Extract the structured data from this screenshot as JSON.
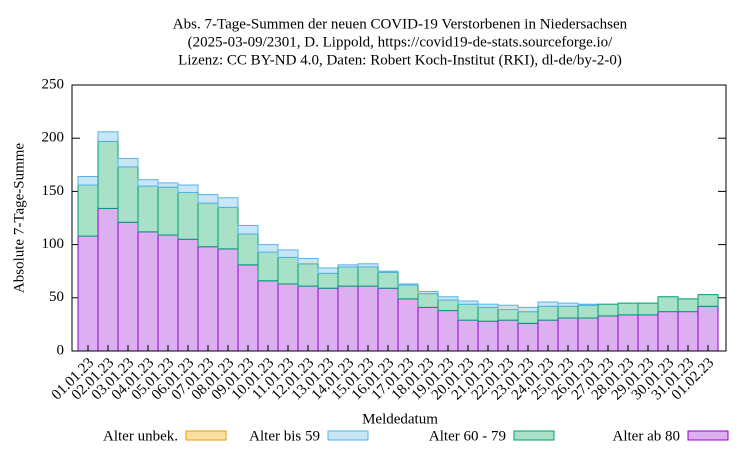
{
  "chart_data": {
    "type": "stacked_bar",
    "title": [
      "Abs. 7-Tage-Summen der neuen COVID-19 Verstorbenen in Niedersachsen",
      "(2025-03-09/2301, D. Lippold, https://covid19-de-stats.sourceforge.io/",
      "Lizenz: CC BY-ND 4.0, Daten: Robert Koch-Institut (RKI), dl-de/by-2-0)"
    ],
    "x_label": "Meldedatum",
    "y_label": "Absolute 7-Tage-Summe",
    "categories": [
      "01.01.23",
      "02.01.23",
      "03.01.23",
      "04.01.23",
      "05.01.23",
      "06.01.23",
      "07.01.23",
      "08.01.23",
      "09.01.23",
      "10.01.23",
      "11.01.23",
      "12.01.23",
      "13.01.23",
      "14.01.23",
      "15.01.23",
      "16.01.23",
      "17.01.23",
      "18.01.23",
      "19.01.23",
      "20.01.23",
      "21.01.23",
      "22.01.23",
      "23.01.23",
      "24.01.23",
      "25.01.23",
      "26.01.23",
      "27.01.23",
      "28.01.23",
      "29.01.23",
      "30.01.23",
      "31.01.23",
      "01.02.23"
    ],
    "series": [
      {
        "name": "Alter unbek.",
        "color": "#e69f00",
        "fill": "#f9e0a0",
        "values": [
          0,
          0,
          0,
          0,
          0,
          0,
          0,
          0,
          0,
          0,
          0,
          0,
          0,
          0,
          0,
          0,
          0,
          0,
          0,
          0,
          0,
          0,
          0,
          0,
          0,
          0,
          0,
          0,
          0,
          0,
          0,
          0
        ]
      },
      {
        "name": "Alter bis 59",
        "color": "#56b4e9",
        "fill": "#c8e6f5",
        "values": [
          8,
          9,
          8,
          6,
          4,
          7,
          8,
          9,
          8,
          7,
          7,
          5,
          5,
          2,
          3,
          1,
          1,
          2,
          3,
          3,
          3,
          4,
          4,
          4,
          3,
          1,
          0,
          0,
          0,
          0,
          0,
          0
        ]
      },
      {
        "name": "Alter 60 - 79",
        "color": "#009e73",
        "fill": "#a8e0c8",
        "values": [
          48,
          63,
          52,
          43,
          45,
          44,
          41,
          39,
          29,
          27,
          25,
          21,
          14,
          18,
          18,
          15,
          13,
          13,
          10,
          15,
          13,
          10,
          11,
          13,
          11,
          12,
          11,
          11,
          11,
          14,
          12,
          11
        ]
      },
      {
        "name": "Alter ab 80",
        "color": "#9400d3",
        "fill": "#dcb0f0",
        "values": [
          108,
          134,
          121,
          112,
          109,
          105,
          98,
          96,
          81,
          66,
          63,
          61,
          59,
          61,
          61,
          59,
          49,
          41,
          38,
          29,
          28,
          29,
          26,
          29,
          31,
          31,
          33,
          34,
          34,
          37,
          37,
          42
        ]
      }
    ],
    "ylim": [
      0,
      250
    ],
    "yticks": [
      0,
      50,
      100,
      150,
      200,
      250
    ]
  }
}
